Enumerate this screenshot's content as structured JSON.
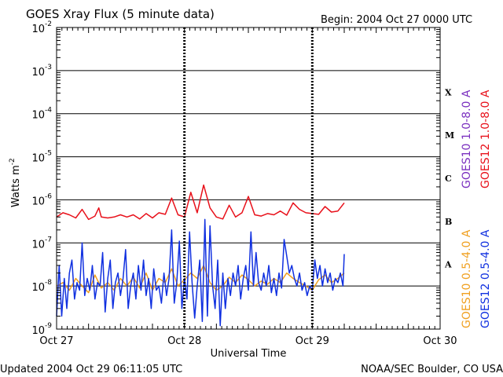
{
  "chart_data": {
    "type": "line",
    "title": "GOES Xray Flux (5 minute data)",
    "begin_label": "Begin:  2004 Oct 27 0000 UTC",
    "xlabel": "Universal Time",
    "ylabel": "Watts m",
    "ylabel_exponent": "-2",
    "y_scale": "log",
    "ylim": [
      1e-09,
      0.01
    ],
    "xlim_days": [
      0,
      3
    ],
    "x_ticks": [
      {
        "day": 0,
        "label": "Oct 27"
      },
      {
        "day": 1,
        "label": "Oct 28"
      },
      {
        "day": 2,
        "label": "Oct 29"
      },
      {
        "day": 3,
        "label": "Oct 30"
      }
    ],
    "y_ticks": [
      {
        "exp": -2,
        "label": "10",
        "sup": "-2"
      },
      {
        "exp": -3,
        "label": "10",
        "sup": "-3"
      },
      {
        "exp": -4,
        "label": "10",
        "sup": "-4"
      },
      {
        "exp": -5,
        "label": "10",
        "sup": "-5"
      },
      {
        "exp": -6,
        "label": "10",
        "sup": "-6"
      },
      {
        "exp": -7,
        "label": "10",
        "sup": "-7"
      },
      {
        "exp": -8,
        "label": "10",
        "sup": "-8"
      },
      {
        "exp": -9,
        "label": "10",
        "sup": "-9"
      }
    ],
    "flare_classes": [
      {
        "label": "X",
        "exp": -3.5
      },
      {
        "label": "M",
        "exp": -4.5
      },
      {
        "label": "C",
        "exp": -5.5
      },
      {
        "label": "B",
        "exp": -6.5
      },
      {
        "label": "A",
        "exp": -7.5
      }
    ],
    "grid": true,
    "legend": "right",
    "series": [
      {
        "name": "GOES10 1.0-8.0 A",
        "color": "#7a2fbf",
        "x": [],
        "y": []
      },
      {
        "name": "GOES12 1.0-8.0 A",
        "color": "#e8101a",
        "x": [
          0.0,
          0.05,
          0.1,
          0.15,
          0.2,
          0.25,
          0.3,
          0.33,
          0.35,
          0.4,
          0.45,
          0.5,
          0.55,
          0.6,
          0.65,
          0.7,
          0.75,
          0.8,
          0.85,
          0.9,
          0.95,
          0.98,
          1.0,
          1.05,
          1.1,
          1.15,
          1.2,
          1.25,
          1.3,
          1.35,
          1.4,
          1.45,
          1.5,
          1.55,
          1.6,
          1.65,
          1.7,
          1.75,
          1.8,
          1.85,
          1.9,
          1.95,
          2.0,
          2.05,
          2.1,
          2.15,
          2.2,
          2.25
        ],
        "y": [
          4e-07,
          5e-07,
          4.5e-07,
          3.8e-07,
          6e-07,
          3.5e-07,
          4.2e-07,
          6.5e-07,
          4e-07,
          3.8e-07,
          4e-07,
          4.5e-07,
          4e-07,
          4.5e-07,
          3.6e-07,
          4.8e-07,
          3.8e-07,
          5e-07,
          4.6e-07,
          1.1e-06,
          4.5e-07,
          4.2e-07,
          4e-07,
          1.5e-06,
          5e-07,
          2.2e-06,
          6.5e-07,
          4e-07,
          3.6e-07,
          7.5e-07,
          4e-07,
          5e-07,
          1.2e-06,
          4.5e-07,
          4.2e-07,
          4.8e-07,
          4.5e-07,
          5.5e-07,
          4.4e-07,
          8.5e-07,
          6e-07,
          5e-07,
          4.8e-07,
          4.6e-07,
          7e-07,
          5.2e-07,
          5.5e-07,
          8.5e-07
        ]
      },
      {
        "name": "GOES10 0.5-4.0 A",
        "color": "#f0a020",
        "x": [
          0.0,
          0.05,
          0.1,
          0.15,
          0.2,
          0.25,
          0.3,
          0.35,
          0.4,
          0.45,
          0.5,
          0.55,
          0.6,
          0.65,
          0.7,
          0.75,
          0.8,
          0.85,
          0.9,
          0.95,
          1.0,
          1.05,
          1.1,
          1.15,
          1.2,
          1.25,
          1.3,
          1.35,
          1.4,
          1.45,
          1.5,
          1.55,
          1.6,
          1.65,
          1.7,
          1.75,
          1.8,
          1.85,
          1.9,
          1.95,
          2.0,
          2.05,
          2.1,
          2.15,
          2.2,
          2.25
        ],
        "y": [
          1e-08,
          1.2e-08,
          8e-09,
          1.5e-08,
          1e-08,
          7e-09,
          1.8e-08,
          9e-09,
          1.2e-08,
          8e-09,
          1.5e-08,
          1e-08,
          1.6e-08,
          9e-09,
          2e-08,
          8e-09,
          1.5e-08,
          1.2e-08,
          2.5e-08,
          1e-08,
          1.4e-08,
          2e-08,
          1.5e-08,
          3e-08,
          1.2e-08,
          8e-09,
          1e-08,
          1.6e-08,
          1.2e-08,
          1.8e-08,
          1.4e-08,
          1e-08,
          1.3e-08,
          1.1e-08,
          1.5e-08,
          1.2e-08,
          2e-08,
          1.5e-08,
          1.2e-08,
          1e-08,
          8e-09,
          1.4e-08,
          1.8e-08,
          1.2e-08,
          1.5e-08,
          2e-08
        ]
      },
      {
        "name": "GOES12 0.5-4.0 A",
        "color": "#1030e0",
        "x": [
          0.0,
          0.02,
          0.04,
          0.06,
          0.08,
          0.1,
          0.12,
          0.14,
          0.16,
          0.18,
          0.2,
          0.22,
          0.24,
          0.26,
          0.28,
          0.3,
          0.32,
          0.34,
          0.36,
          0.38,
          0.4,
          0.42,
          0.44,
          0.46,
          0.48,
          0.5,
          0.52,
          0.54,
          0.56,
          0.58,
          0.6,
          0.62,
          0.64,
          0.66,
          0.68,
          0.7,
          0.72,
          0.74,
          0.76,
          0.78,
          0.8,
          0.82,
          0.84,
          0.86,
          0.88,
          0.9,
          0.92,
          0.94,
          0.96,
          0.98,
          1.0,
          1.02,
          1.04,
          1.06,
          1.08,
          1.1,
          1.12,
          1.14,
          1.16,
          1.18,
          1.2,
          1.22,
          1.24,
          1.26,
          1.28,
          1.3,
          1.32,
          1.34,
          1.36,
          1.38,
          1.4,
          1.42,
          1.44,
          1.46,
          1.48,
          1.5,
          1.52,
          1.54,
          1.56,
          1.58,
          1.6,
          1.62,
          1.64,
          1.66,
          1.68,
          1.7,
          1.72,
          1.74,
          1.76,
          1.78,
          1.8,
          1.82,
          1.84,
          1.86,
          1.88,
          1.9,
          1.92,
          1.94,
          1.96,
          1.98,
          2.0,
          2.02,
          2.04,
          2.06,
          2.08,
          2.1,
          2.12,
          2.14,
          2.16,
          2.18,
          2.2,
          2.22,
          2.24,
          2.25
        ],
        "y": [
          2e-09,
          3e-08,
          2e-09,
          1.5e-08,
          3e-09,
          2e-08,
          4e-08,
          5e-09,
          1.2e-08,
          8e-09,
          1e-07,
          6e-09,
          1.5e-08,
          8e-09,
          3e-08,
          5e-09,
          1.2e-08,
          1e-08,
          6e-08,
          2.5e-09,
          1.5e-08,
          4e-08,
          3e-09,
          1.2e-08,
          2e-08,
          6e-09,
          1.5e-08,
          7e-08,
          3e-09,
          1e-08,
          2e-08,
          5e-09,
          3e-08,
          8e-09,
          4e-08,
          6e-09,
          1.5e-08,
          3e-09,
          2.5e-08,
          8e-09,
          1e-08,
          4e-09,
          2e-08,
          6e-09,
          1.5e-08,
          2e-07,
          4e-09,
          1.2e-08,
          1.1e-07,
          3e-09,
          1.5e-08,
          5e-09,
          1.8e-07,
          1.2e-08,
          1.8e-09,
          1e-08,
          4e-08,
          1.5e-09,
          3.5e-07,
          2e-09,
          2.5e-07,
          1e-08,
          3e-09,
          4e-08,
          1.2e-09,
          2e-08,
          3e-09,
          1.5e-08,
          6e-09,
          2e-08,
          1e-08,
          3e-08,
          5e-09,
          1.5e-08,
          3e-08,
          8e-09,
          1.8e-07,
          1e-08,
          6e-08,
          1.2e-08,
          8e-09,
          2e-08,
          1e-08,
          3e-08,
          7e-09,
          1.5e-08,
          6e-09,
          2e-08,
          9e-09,
          1.2e-07,
          5e-08,
          2e-08,
          3e-08,
          1.5e-08,
          1e-08,
          2e-08,
          8e-09,
          1.2e-08,
          6e-09,
          1e-08,
          8e-09,
          4e-08,
          1.5e-08,
          3e-08,
          1e-08,
          2.5e-08,
          1.2e-08,
          2e-08,
          8e-09,
          1.5e-08,
          1.2e-08,
          2e-08,
          1e-08,
          5.5e-08
        ]
      }
    ]
  },
  "footer": {
    "updated": "Updated 2004 Oct 29 06:11:05 UTC",
    "credit": "NOAA/SEC Boulder, CO USA"
  }
}
